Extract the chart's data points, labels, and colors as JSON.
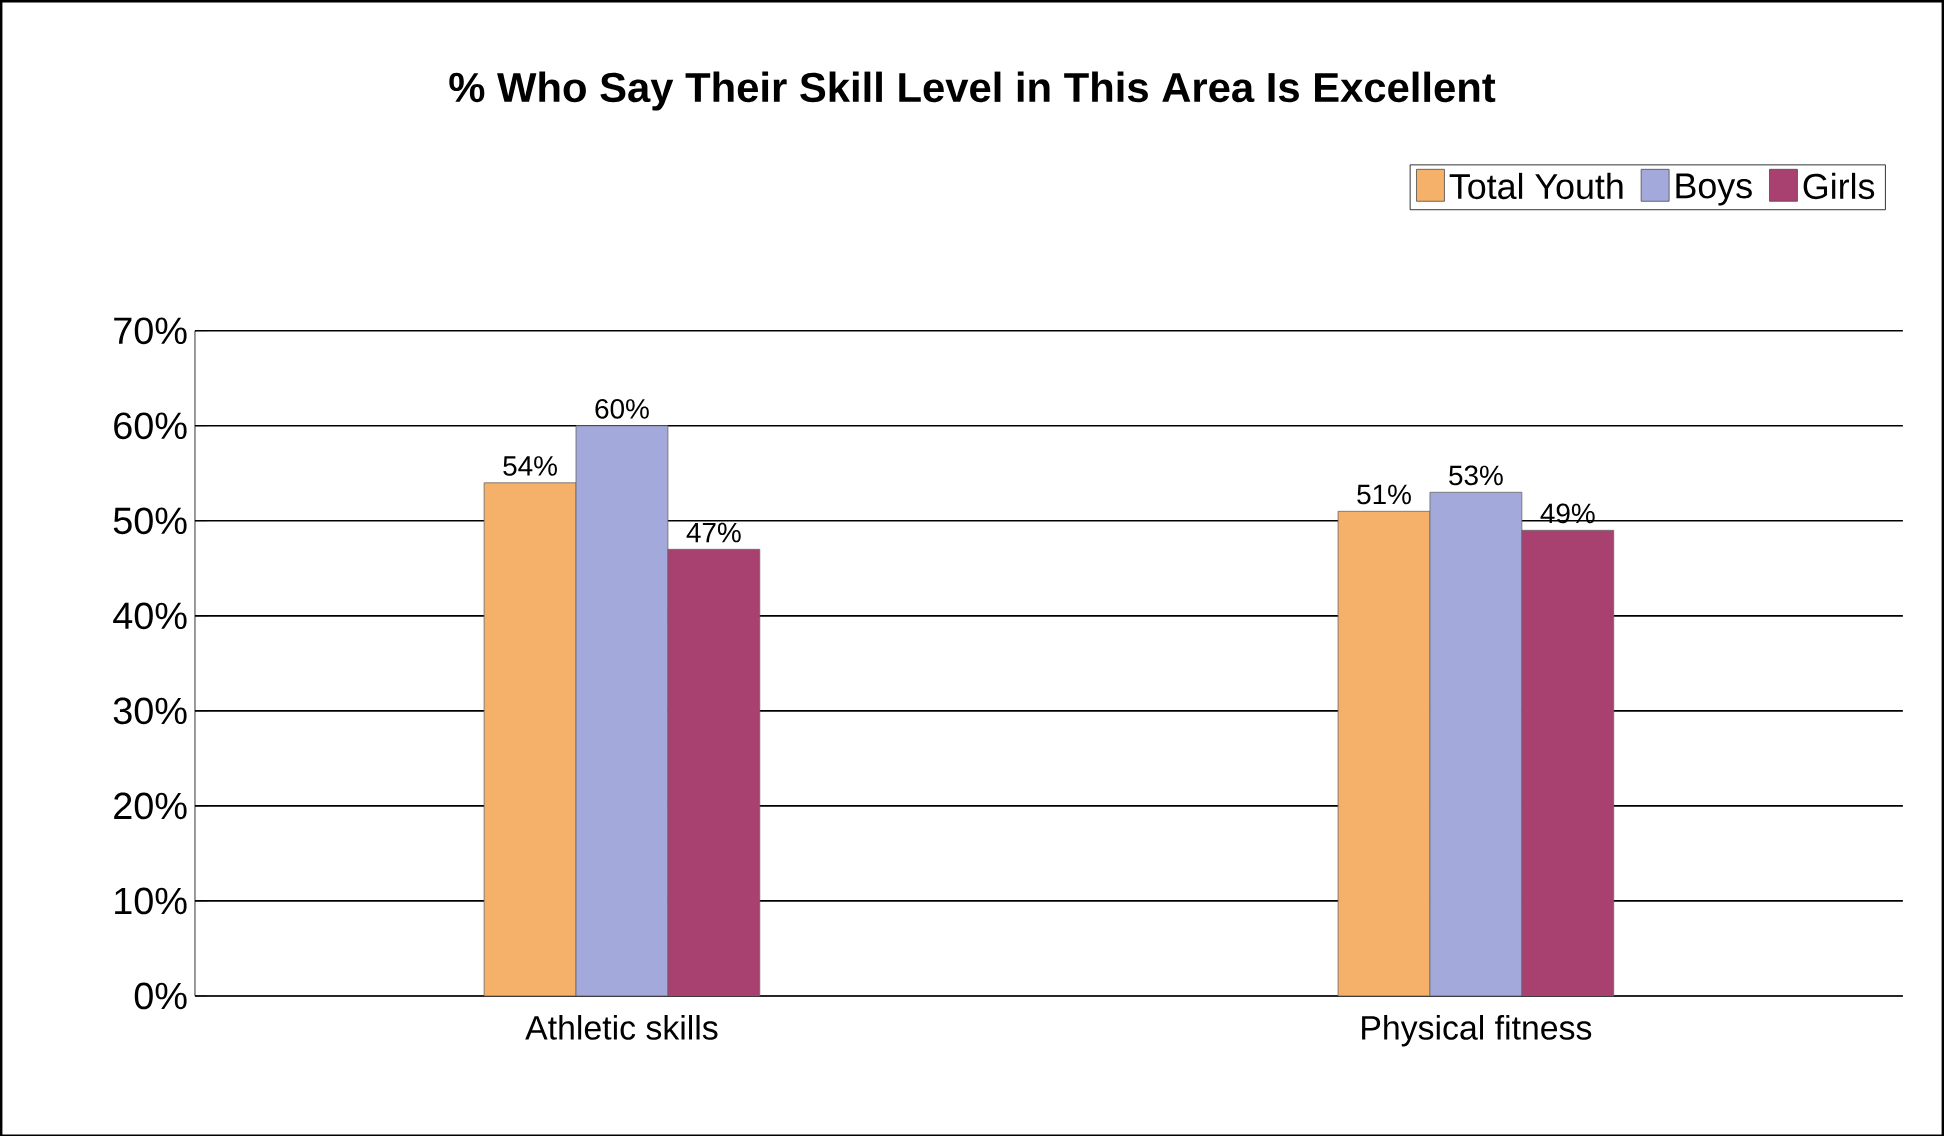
{
  "chart_data": {
    "type": "bar",
    "title": "% Who Say Their Skill Level in This Area Is Excellent",
    "categories": [
      "Athletic skills",
      "Physical fitness"
    ],
    "series": [
      {
        "name": "Total Youth",
        "color": "#f5b06a",
        "values": [
          54,
          51
        ],
        "value_labels": [
          "54%",
          "51%"
        ]
      },
      {
        "name": "Boys",
        "color": "#a3a9da",
        "values": [
          60,
          53
        ],
        "value_labels": [
          "60%",
          "53%"
        ]
      },
      {
        "name": "Girls",
        "color": "#a8416f",
        "values": [
          47,
          49
        ],
        "value_labels": [
          "47%",
          "49%"
        ]
      }
    ],
    "ylim": [
      0,
      70
    ],
    "yticks": [
      {
        "value": 0,
        "label": "0%"
      },
      {
        "value": 10,
        "label": "10%"
      },
      {
        "value": 20,
        "label": "20%"
      },
      {
        "value": 30,
        "label": "30%"
      },
      {
        "value": 40,
        "label": "40%"
      },
      {
        "value": 50,
        "label": "50%"
      },
      {
        "value": 60,
        "label": "60%"
      },
      {
        "value": 70,
        "label": "70%"
      }
    ],
    "grid": "y",
    "legend": "top right"
  }
}
